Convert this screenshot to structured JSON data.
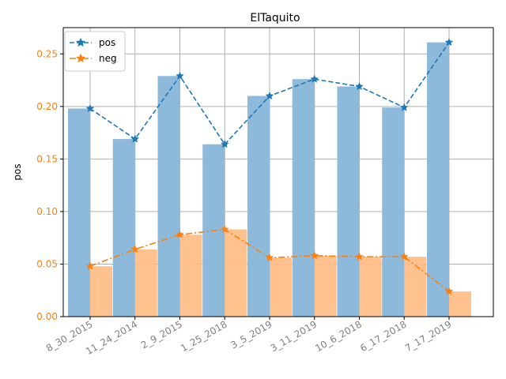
{
  "chart_data": {
    "type": "bar",
    "title": "ElTaquito",
    "ylabel": "pos",
    "xlabel": "",
    "categories": [
      "8_30_2015",
      "11_24_2014",
      "2_9_2015",
      "1_25_2018",
      "3_5_2019",
      "3_11_2019",
      "10_6_2018",
      "6_17_2018",
      "7_17_2019"
    ],
    "ylim": [
      0,
      0.275
    ],
    "yticks": [
      "0.00",
      "0.05",
      "0.10",
      "0.15",
      "0.20",
      "0.25"
    ],
    "grid": true,
    "legend_position": "top-left",
    "series": [
      {
        "name": "pos",
        "values": [
          0.198,
          0.169,
          0.229,
          0.164,
          0.21,
          0.226,
          0.219,
          0.199,
          0.261
        ],
        "color": "#1f77b4",
        "bar_color": "#8db9db",
        "line_style": "dashed",
        "marker": "star"
      },
      {
        "name": "neg",
        "values": [
          0.048,
          0.064,
          0.078,
          0.083,
          0.056,
          0.058,
          0.057,
          0.057,
          0.024
        ],
        "color": "#ff7f0e",
        "bar_color": "#ffbd85",
        "line_style": "dashdot",
        "marker": "star"
      }
    ],
    "ytick_color": "#ff7f0e",
    "xtick_color": "#808080"
  }
}
